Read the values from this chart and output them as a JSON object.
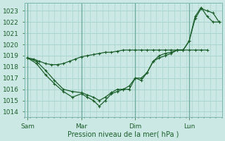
{
  "background_color": "#cce8e4",
  "grid_color": "#aad4ce",
  "line_color": "#1a5e2a",
  "marker_color": "#1a5e2a",
  "xlabel": "Pression niveau de la mer( hPa )",
  "ylim": [
    1013.5,
    1023.7
  ],
  "yticks": [
    1014,
    1015,
    1016,
    1017,
    1018,
    1019,
    1020,
    1021,
    1022,
    1023
  ],
  "xtick_labels": [
    "Sam",
    "Mar",
    "Dim",
    "Lun"
  ],
  "xtick_positions": [
    0,
    36,
    72,
    108
  ],
  "vline_positions": [
    0,
    36,
    72,
    108
  ],
  "xlim": [
    -2,
    130
  ],
  "series1_x": [
    0,
    4,
    8,
    12,
    16,
    20,
    24,
    28,
    32,
    36,
    40,
    44,
    48,
    52,
    56,
    60,
    64,
    68,
    72,
    76,
    80,
    84,
    88,
    92,
    96,
    100,
    104,
    108,
    112,
    116,
    120
  ],
  "series1_y": [
    1018.8,
    1018.7,
    1018.5,
    1018.3,
    1018.2,
    1018.2,
    1018.3,
    1018.5,
    1018.7,
    1018.9,
    1019.0,
    1019.1,
    1019.2,
    1019.3,
    1019.3,
    1019.4,
    1019.5,
    1019.5,
    1019.5,
    1019.5,
    1019.5,
    1019.5,
    1019.5,
    1019.5,
    1019.5,
    1019.5,
    1019.5,
    1019.5,
    1019.5,
    1019.5,
    1019.5
  ],
  "series2_x": [
    0,
    6,
    12,
    18,
    24,
    30,
    36,
    40,
    44,
    48,
    52,
    56,
    60,
    64,
    68,
    72,
    76,
    80,
    84,
    88,
    92,
    96,
    100,
    104,
    108,
    112,
    116,
    120,
    124,
    128
  ],
  "series2_y": [
    1018.8,
    1018.5,
    1017.7,
    1016.8,
    1016.0,
    1015.8,
    1015.7,
    1015.5,
    1015.3,
    1015.0,
    1015.3,
    1015.7,
    1016.0,
    1016.0,
    1016.3,
    1017.0,
    1016.8,
    1017.5,
    1018.5,
    1019.0,
    1019.2,
    1019.3,
    1019.5,
    1019.5,
    1020.3,
    1022.3,
    1023.2,
    1023.0,
    1022.8,
    1022.0
  ],
  "series3_x": [
    0,
    6,
    12,
    18,
    24,
    30,
    36,
    40,
    44,
    48,
    52,
    56,
    60,
    64,
    68,
    72,
    76,
    80,
    84,
    88,
    92,
    96,
    100,
    104,
    108,
    112,
    116,
    120,
    124,
    128
  ],
  "series3_y": [
    1018.8,
    1018.3,
    1017.3,
    1016.5,
    1015.8,
    1015.3,
    1015.6,
    1015.3,
    1015.0,
    1014.5,
    1015.0,
    1015.6,
    1015.8,
    1016.0,
    1016.0,
    1017.0,
    1017.0,
    1017.5,
    1018.5,
    1018.8,
    1019.0,
    1019.2,
    1019.5,
    1019.5,
    1020.3,
    1022.5,
    1023.3,
    1022.5,
    1022.0,
    1022.0
  ],
  "figsize": [
    3.2,
    2.0
  ],
  "dpi": 100
}
